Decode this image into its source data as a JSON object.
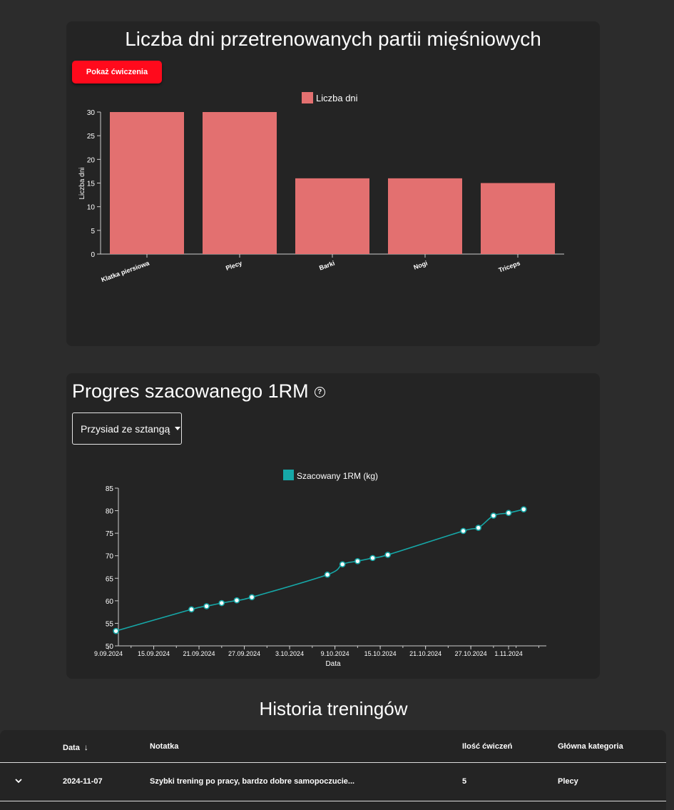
{
  "muscle_chart": {
    "title": "Liczba dni przetrenowanych partii mięśniowych",
    "button_label": "Pokaż ćwiczenia"
  },
  "progress_chart": {
    "title": "Progres szacowanego 1RM",
    "help_icon": "?",
    "exercise_selected": "Przysiad ze sztangą"
  },
  "history": {
    "title": "Historia treningów",
    "columns": [
      "Data",
      "Notatka",
      "Ilość ćwiczeń",
      "Główna kategoria"
    ],
    "rows": [
      {
        "date": "2024-11-07",
        "note": "Szybki trening po pracy, bardzo dobre samopoczucie...",
        "exercise_count": "5",
        "category": "Plecy"
      }
    ]
  },
  "chart_data": [
    {
      "type": "bar",
      "categories": [
        "Klatka piersiowa",
        "Plecy",
        "Barki",
        "Nogi",
        "Triceps"
      ],
      "series": [
        {
          "name": "Liczba dni",
          "values": [
            30,
            30,
            16,
            16,
            15
          ],
          "color": "#e37070"
        }
      ],
      "ylabel": "Liczba dni",
      "ylim": [
        0,
        30
      ],
      "yticks": [
        0,
        5,
        10,
        15,
        20,
        25,
        30
      ],
      "legend": "top-center"
    },
    {
      "type": "line",
      "series": [
        {
          "name": "Szacowany 1RM (kg)",
          "color": "#16a8a8",
          "x": [
            "2024-09-10",
            "2024-09-20",
            "2024-09-22",
            "2024-09-24",
            "2024-09-26",
            "2024-09-28",
            "2024-10-08",
            "2024-10-10",
            "2024-10-12",
            "2024-10-14",
            "2024-10-16",
            "2024-10-26",
            "2024-10-28",
            "2024-10-30",
            "2024-11-01",
            "2024-11-03"
          ],
          "y": [
            53.3,
            58.1,
            58.8,
            59.5,
            60.1,
            60.8,
            65.8,
            68.1,
            68.8,
            69.5,
            70.2,
            75.5,
            76.2,
            78.9,
            79.5,
            80.3
          ]
        }
      ],
      "xlabel": "Data",
      "xticks": [
        "9.09.2024",
        "15.09.2024",
        "21.09.2024",
        "27.09.2024",
        "3.10.2024",
        "9.10.2024",
        "15.10.2024",
        "21.10.2024",
        "27.10.2024",
        "1.11.2024"
      ],
      "xlim": [
        "2024-09-09",
        "2024-11-06"
      ],
      "ylim": [
        50,
        85
      ],
      "yticks": [
        50,
        55,
        60,
        65,
        70,
        75,
        80,
        85
      ],
      "legend": "top-center"
    }
  ]
}
